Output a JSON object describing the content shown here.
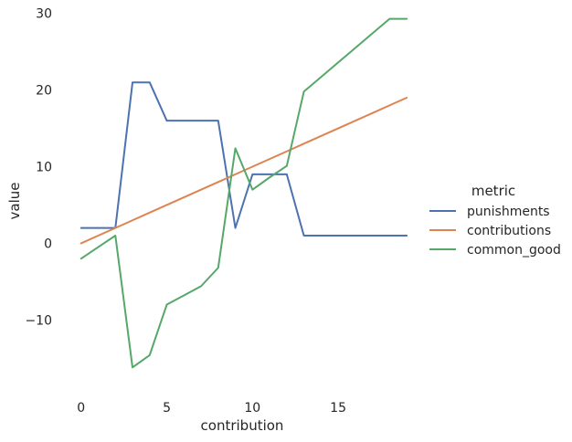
{
  "chart_data": {
    "type": "line",
    "xlabel": "contribution",
    "ylabel": "value",
    "xlim": [
      -1,
      19.9
    ],
    "ylim": [
      -19.5,
      30.8
    ],
    "xticks": [
      0,
      5,
      10,
      15
    ],
    "yticks": [
      30,
      20,
      10,
      0,
      -10
    ],
    "ytick_labels": [
      "30",
      "20",
      "10",
      "0",
      "−10"
    ],
    "grid": false,
    "legend": {
      "title": "metric",
      "placement": "right"
    },
    "x": [
      0,
      1,
      2,
      3,
      4,
      5,
      6,
      7,
      8,
      9,
      10,
      11,
      12,
      13,
      14,
      15,
      16,
      17,
      18,
      19
    ],
    "series": [
      {
        "name": "punishments",
        "color": "#4c72b0",
        "values": [
          2,
          2,
          2,
          21,
          21,
          16,
          16,
          16,
          16,
          2,
          9,
          9,
          9,
          1,
          1,
          1,
          1,
          1,
          1,
          1
        ]
      },
      {
        "name": "contributions",
        "color": "#dd8452",
        "values": [
          0,
          1,
          2,
          3,
          4,
          5,
          6,
          7,
          8,
          9,
          10,
          11,
          12,
          13,
          14,
          15,
          16,
          17,
          18,
          19
        ]
      },
      {
        "name": "common_good",
        "color": "#55a868",
        "values": [
          -2,
          -0.5,
          1,
          -16.2,
          -14.6,
          -8,
          -6.8,
          -5.6,
          -3.2,
          12.4,
          7,
          8.6,
          10.1,
          19.8,
          21.7,
          23.6,
          25.5,
          27.4,
          29.3,
          29.3
        ]
      }
    ]
  }
}
